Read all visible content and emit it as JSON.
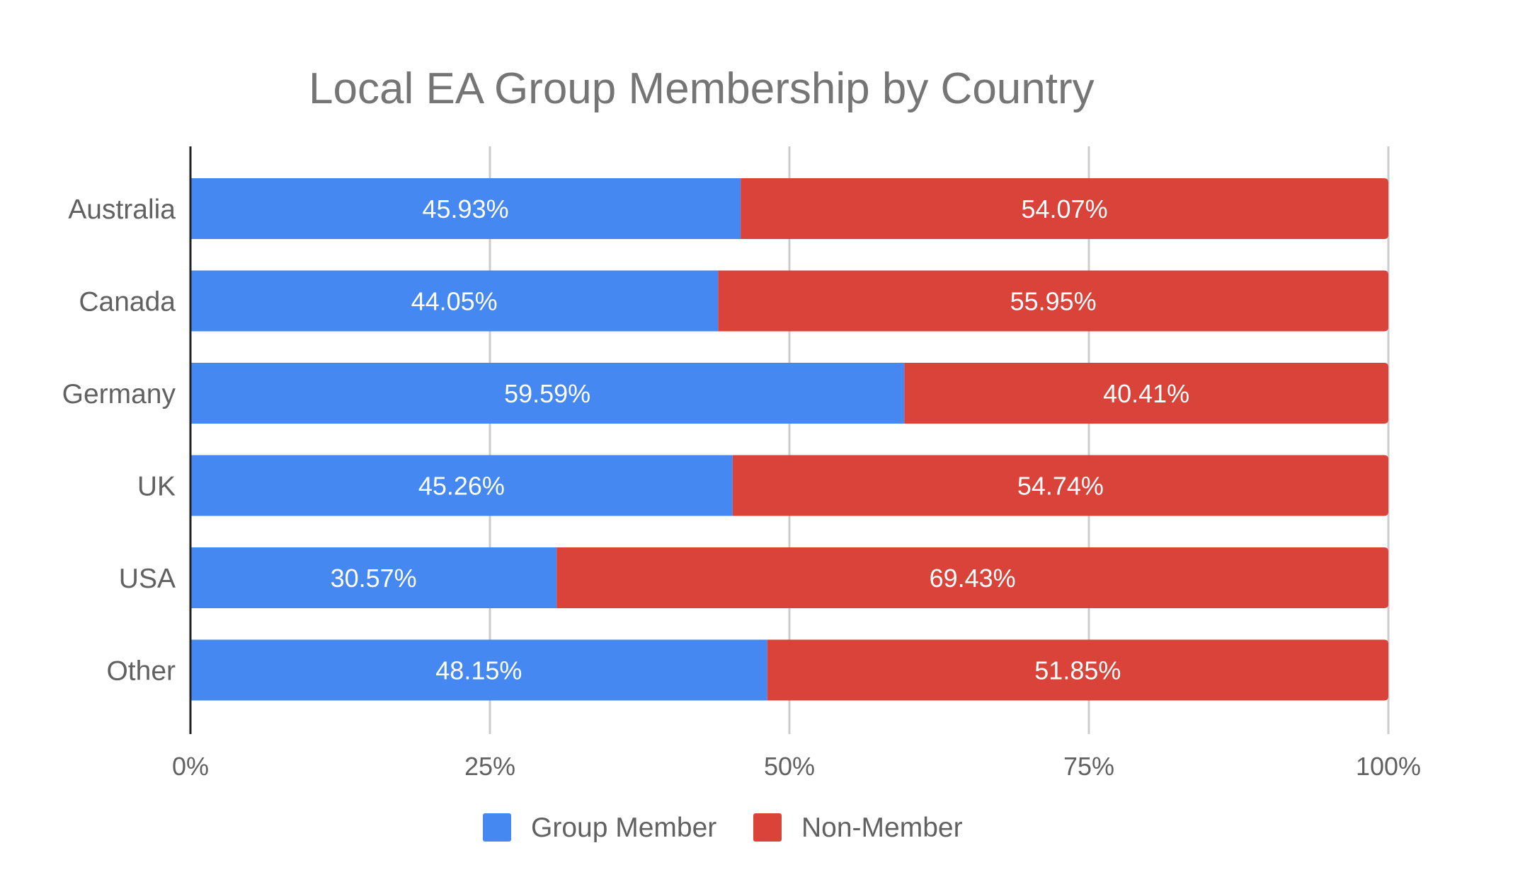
{
  "chart_data": {
    "type": "bar",
    "orientation": "horizontal",
    "stacked": "percent",
    "title": "Local EA Group Membership by Country",
    "categories": [
      "Australia",
      "Canada",
      "Germany",
      "UK",
      "USA",
      "Other"
    ],
    "series": [
      {
        "name": "Group Member",
        "color": "#4688F1",
        "values": [
          45.93,
          44.05,
          59.59,
          45.26,
          30.57,
          48.15
        ],
        "labels": [
          "45.93%",
          "44.05%",
          "59.59%",
          "45.26%",
          "30.57%",
          "48.15%"
        ]
      },
      {
        "name": "Non-Member",
        "color": "#D9433A",
        "values": [
          54.07,
          55.95,
          40.41,
          54.74,
          69.43,
          51.85
        ],
        "labels": [
          "54.07%",
          "55.95%",
          "40.41%",
          "54.74%",
          "69.43%",
          "51.85%"
        ]
      }
    ],
    "xlim": [
      0,
      100
    ],
    "xticks": [
      0,
      25,
      50,
      75,
      100
    ],
    "xtick_labels": [
      "0%",
      "25%",
      "50%",
      "75%",
      "100%"
    ],
    "grid": true,
    "legend_position": "bottom"
  }
}
